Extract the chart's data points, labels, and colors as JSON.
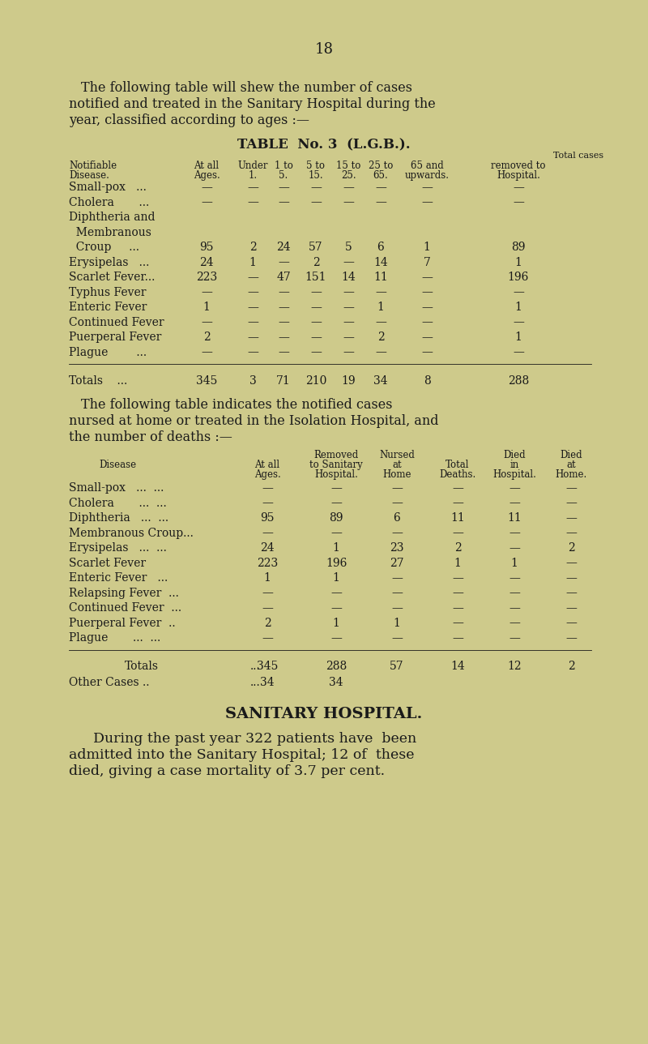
{
  "bg_color": "#ceca8b",
  "text_color": "#1a1a1a",
  "page_number": "18",
  "intro_text1": "The following table will shew the number of cases",
  "intro_text2": "notified and treated in the Sanitary Hospital during the",
  "intro_text3": "year, classified according to ages :—",
  "table1_title": "TABLE  No. 3  (L.G.B.).",
  "table1_rows": [
    [
      "Small-pox   ...",
      "—",
      "—",
      "—",
      "—",
      "—",
      "—",
      "—",
      "—"
    ],
    [
      "Cholera       ...",
      "—",
      "—",
      "—",
      "—",
      "—",
      "—",
      "—",
      "—"
    ],
    [
      "Diphtheria and",
      "",
      "",
      "",
      "",
      "",
      "",
      "",
      ""
    ],
    [
      "  Membranous",
      "",
      "",
      "",
      "",
      "",
      "",
      "",
      ""
    ],
    [
      "  Croup     ...",
      "95",
      "2",
      "24",
      "57",
      "5",
      "6",
      "1",
      "89"
    ],
    [
      "Erysipelas   ...",
      "24",
      "1",
      "—",
      "2",
      "—",
      "14",
      "7",
      "1"
    ],
    [
      "Scarlet Fever...",
      "223",
      "—",
      "47",
      "151",
      "14",
      "11",
      "—",
      "196"
    ],
    [
      "Typhus Fever",
      "—",
      "—",
      "—",
      "—",
      "—",
      "—",
      "—",
      "—"
    ],
    [
      "Enteric Fever",
      "1",
      "—",
      "—",
      "—",
      "—",
      "1",
      "—",
      "1"
    ],
    [
      "Continued Fever",
      "—",
      "—",
      "—",
      "—",
      "—",
      "—",
      "—",
      "—"
    ],
    [
      "Puerperal Fever",
      "2",
      "—",
      "—",
      "—",
      "—",
      "2",
      "—",
      "1"
    ],
    [
      "Plague        ...",
      "—",
      "—",
      "—",
      "—",
      "—",
      "—",
      "—",
      "—"
    ]
  ],
  "table1_totals": [
    "Totals    ...",
    "345",
    "3",
    "71",
    "210",
    "19",
    "34",
    "8",
    "288"
  ],
  "intro2_text1": "The following table indicates the notified cases",
  "intro2_text2": "nursed at home or treated in the Isolation Hospital, and",
  "intro2_text3": "the number of deaths :—",
  "table2_rows": [
    [
      "Small-pox   ...  ...",
      "—",
      "—",
      "—",
      "—",
      "—",
      "—"
    ],
    [
      "Cholera       ...  ...",
      "—",
      "—",
      "—",
      "—",
      "—",
      "—"
    ],
    [
      "Diphtheria   ...  ...",
      "95",
      "89",
      "6",
      "11",
      "11",
      "—"
    ],
    [
      "Membranous Croup...",
      "—",
      "—",
      "—",
      "—",
      "—",
      "—"
    ],
    [
      "Erysipelas   ...  ...",
      "24",
      "1",
      "23",
      "2",
      "—",
      "2"
    ],
    [
      "Scarlet Fever",
      "223",
      "196",
      "27",
      "1",
      "1",
      "—"
    ],
    [
      "Enteric Fever   ...",
      "1",
      "1",
      "—",
      "—",
      "—",
      "—"
    ],
    [
      "Relapsing Fever  ...",
      "—",
      "—",
      "—",
      "—",
      "—",
      "—"
    ],
    [
      "Continued Fever  ...",
      "—",
      "—",
      "—",
      "—",
      "—",
      "—"
    ],
    [
      "Puerperal Fever  ..",
      "2",
      "1",
      "1",
      "—",
      "—",
      "—"
    ],
    [
      "Plague       ...  ...",
      "—",
      "—",
      "—",
      "—",
      "—",
      "—"
    ]
  ],
  "table2_totals": [
    "345",
    "288",
    "57",
    "14",
    "12",
    "2"
  ],
  "table2_other": [
    "34",
    "34"
  ],
  "section_title": "SANITARY HOSPITAL.",
  "section_text1": "During the past year 322 patients have  been",
  "section_text2": "admitted into the Sanitary Hospital; 12 of  these",
  "section_text3": "died, giving a case mortality of 3.7 per cent."
}
